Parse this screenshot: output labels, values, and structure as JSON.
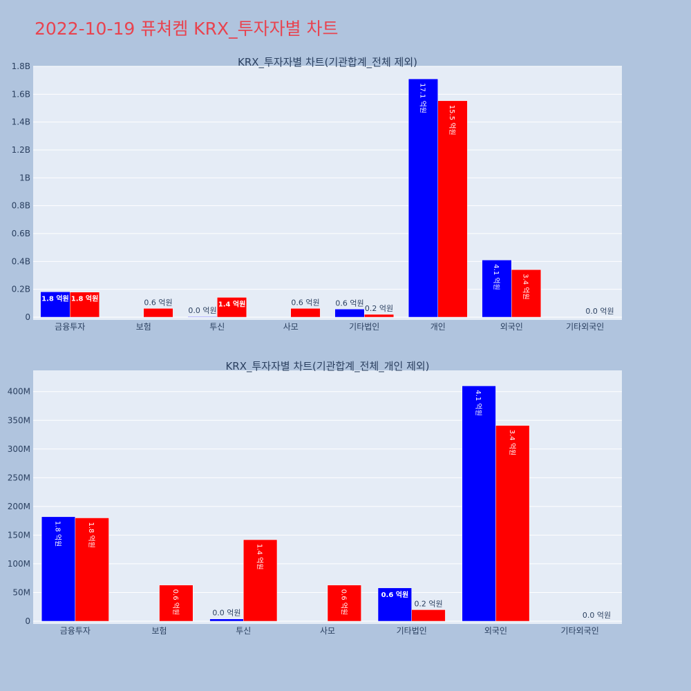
{
  "page": {
    "title": "2022-10-19 퓨쳐켐 KRX_투자자별 차트"
  },
  "colors": {
    "background": "#b0c4de",
    "plot_bg": "#e5ecf6",
    "title": "#e8434f",
    "series_a": "#0000ff",
    "series_b": "#ff0000",
    "text": "#2a3f5f"
  },
  "chart_data": [
    {
      "type": "bar",
      "title": "KRX_투자자별 차트(기관합계_전체 제외)",
      "categories": [
        "금융투자",
        "보험",
        "투신",
        "사모",
        "기타법인",
        "개인",
        "외국인",
        "기타외국인"
      ],
      "ylim": [
        0,
        1800000000
      ],
      "yticks": [
        0,
        200000000,
        400000000,
        600000000,
        800000000,
        1000000000,
        1200000000,
        1400000000,
        1600000000,
        1800000000
      ],
      "ytick_labels": [
        "0",
        "0.2B",
        "0.4B",
        "0.6B",
        "0.8B",
        "1B",
        "1.2B",
        "1.4B",
        "1.6B",
        "1.8B"
      ],
      "grid": true,
      "legend": "none",
      "series": [
        {
          "values": [
            182000000,
            0,
            4000000,
            0,
            58000000,
            1710000000,
            410000000,
            0
          ],
          "labels": [
            "1.8 억원",
            "",
            "0.0 억원",
            "",
            "0.6 억원",
            "17.1 억원",
            "4.1 억원",
            ""
          ],
          "label_pos": [
            "inside",
            "",
            "outside",
            "",
            "outside",
            "inside-vertical",
            "inside-vertical",
            ""
          ]
        },
        {
          "values": [
            180000000,
            63000000,
            142000000,
            63000000,
            20000000,
            1553000000,
            341000000,
            0
          ],
          "labels": [
            "1.8 억원",
            "0.6 억원",
            "1.4 억원",
            "0.6 억원",
            "0.2 억원",
            "15.5 억원",
            "3.4 억원",
            "0.0 억원"
          ],
          "label_pos": [
            "inside",
            "outside",
            "inside",
            "outside",
            "outside",
            "inside-vertical",
            "inside-vertical",
            "outside"
          ]
        }
      ]
    },
    {
      "type": "bar",
      "title": "KRX_투자자별 차트(기관합계_전체_개인 제외)",
      "categories": [
        "금융투자",
        "보험",
        "투신",
        "사모",
        "기타법인",
        "외국인",
        "기타외국인"
      ],
      "ylim": [
        0,
        437000000
      ],
      "yticks": [
        0,
        50000000,
        100000000,
        150000000,
        200000000,
        250000000,
        300000000,
        350000000,
        400000000
      ],
      "ytick_labels": [
        "0",
        "50M",
        "100M",
        "150M",
        "200M",
        "250M",
        "300M",
        "350M",
        "400M"
      ],
      "grid": true,
      "legend": "none",
      "series": [
        {
          "values": [
            182000000,
            0,
            4000000,
            0,
            58000000,
            410000000,
            0
          ],
          "labels": [
            "1.8 억원",
            "",
            "0.0 억원",
            "",
            "0.6 억원",
            "4.1 억원",
            ""
          ],
          "label_pos": [
            "inside-vertical",
            "",
            "outside",
            "",
            "inside",
            "inside-vertical",
            ""
          ]
        },
        {
          "values": [
            180000000,
            63000000,
            142000000,
            63000000,
            20000000,
            341000000,
            0
          ],
          "labels": [
            "1.8 억원",
            "0.6 억원",
            "1.4 억원",
            "0.6 억원",
            "0.2 억원",
            "3.4 억원",
            "0.0 억원"
          ],
          "label_pos": [
            "inside-vertical",
            "inside-vertical",
            "inside-vertical",
            "inside-vertical",
            "outside",
            "inside-vertical",
            "outside"
          ]
        }
      ]
    }
  ]
}
